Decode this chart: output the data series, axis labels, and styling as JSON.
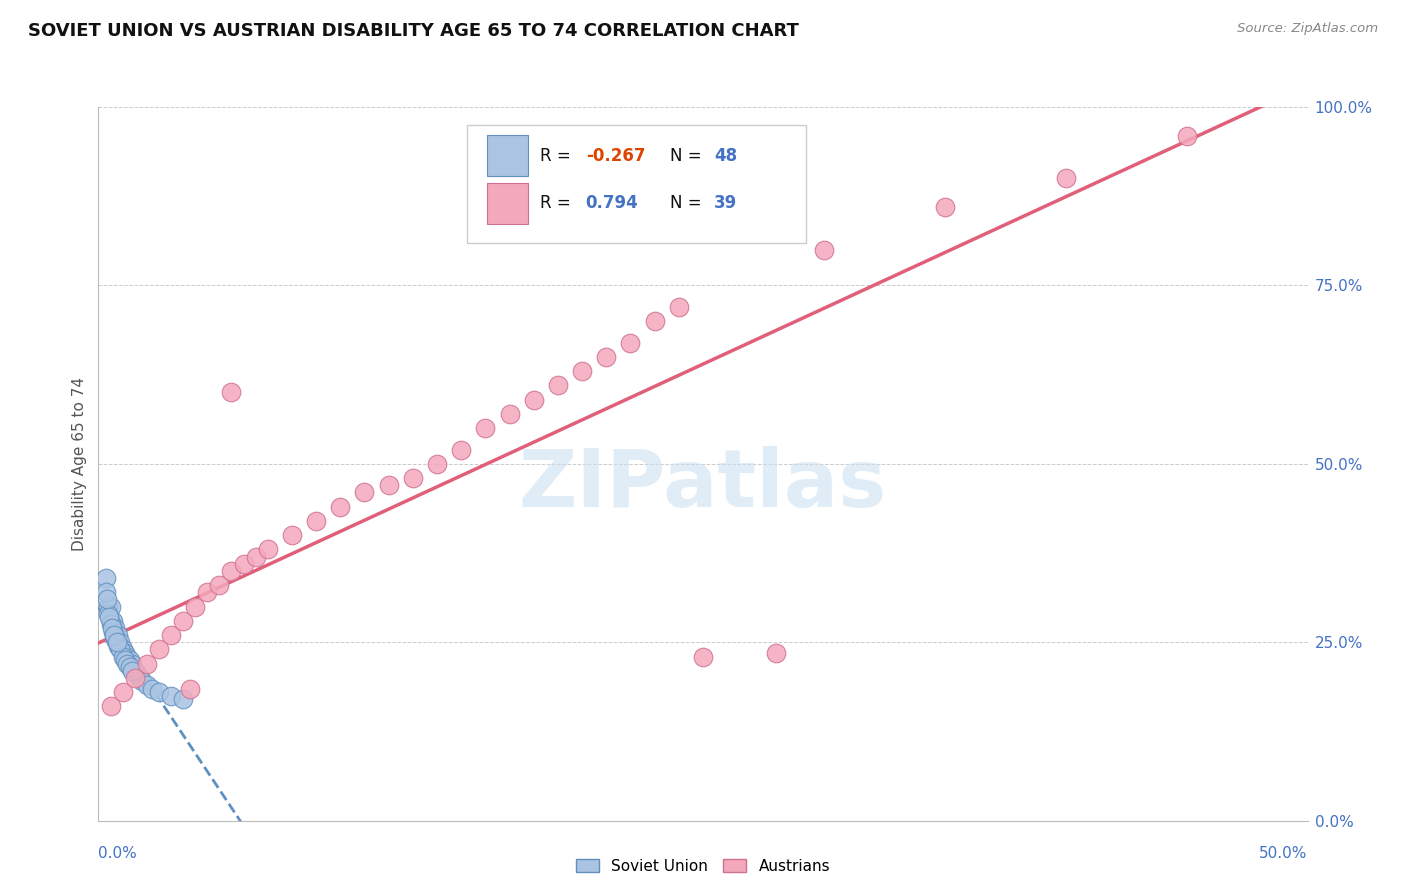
{
  "title": "SOVIET UNION VS AUSTRIAN DISABILITY AGE 65 TO 74 CORRELATION CHART",
  "source": "Source: ZipAtlas.com",
  "ylabel": "Disability Age 65 to 74",
  "xlim": [
    0.0,
    50.0
  ],
  "ylim": [
    0.0,
    100.0
  ],
  "y_ticks": [
    0.0,
    25.0,
    50.0,
    75.0,
    100.0
  ],
  "soviet_R": -0.267,
  "soviet_N": 48,
  "austrian_R": 0.794,
  "austrian_N": 39,
  "soviet_color": "#aac4e2",
  "soviet_edge": "#6090c0",
  "austrian_color": "#f4a8bc",
  "austrian_edge": "#d07090",
  "soviet_line_color": "#6090c0",
  "austrian_line_color": "#e0607a",
  "watermark_color": "#c8dff0",
  "soviet_x": [
    0.3,
    0.4,
    0.5,
    0.5,
    0.6,
    0.6,
    0.7,
    0.7,
    0.8,
    0.8,
    0.9,
    0.9,
    1.0,
    1.0,
    1.1,
    1.1,
    1.2,
    1.2,
    1.3,
    1.3,
    1.4,
    1.4,
    1.5,
    1.6,
    1.7,
    1.8,
    2.0,
    2.2,
    2.5,
    3.0,
    0.3,
    0.4,
    0.5,
    0.6,
    0.7,
    0.8,
    0.9,
    1.0,
    1.1,
    1.2,
    1.3,
    1.4,
    0.35,
    0.45,
    0.55,
    0.65,
    3.5,
    0.75
  ],
  "soviet_y": [
    34.0,
    30.0,
    28.0,
    30.0,
    27.0,
    28.0,
    26.0,
    27.0,
    25.0,
    26.0,
    24.5,
    25.0,
    23.5,
    24.0,
    23.0,
    23.5,
    22.5,
    23.0,
    22.0,
    22.5,
    21.5,
    22.0,
    21.0,
    20.5,
    20.0,
    19.5,
    19.0,
    18.5,
    18.0,
    17.5,
    32.0,
    29.0,
    27.5,
    26.5,
    25.5,
    24.5,
    24.0,
    23.0,
    22.5,
    22.0,
    21.5,
    21.0,
    31.0,
    28.5,
    27.0,
    26.0,
    17.0,
    25.0
  ],
  "austrian_x": [
    0.5,
    1.0,
    1.5,
    2.0,
    2.5,
    3.0,
    3.5,
    4.0,
    4.5,
    5.0,
    5.5,
    6.0,
    6.5,
    7.0,
    8.0,
    9.0,
    10.0,
    11.0,
    12.0,
    13.0,
    14.0,
    15.0,
    16.0,
    17.0,
    18.0,
    19.0,
    20.0,
    21.0,
    22.0,
    23.0,
    24.0,
    30.0,
    35.0,
    40.0,
    45.0,
    3.8,
    5.5,
    25.0,
    28.0
  ],
  "austrian_y": [
    16.0,
    18.0,
    20.0,
    22.0,
    24.0,
    26.0,
    28.0,
    30.0,
    32.0,
    33.0,
    35.0,
    36.0,
    37.0,
    38.0,
    40.0,
    42.0,
    44.0,
    46.0,
    47.0,
    48.0,
    50.0,
    52.0,
    55.0,
    57.0,
    59.0,
    61.0,
    63.0,
    65.0,
    67.0,
    70.0,
    72.0,
    80.0,
    86.0,
    90.0,
    96.0,
    18.5,
    60.0,
    23.0,
    23.5
  ]
}
